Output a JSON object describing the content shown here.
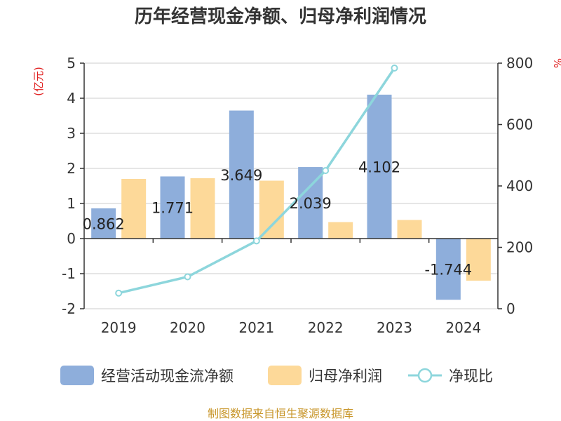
{
  "chart_data": {
    "type": "bar",
    "title": "历年经营现金净额、归母净利润情况",
    "categories": [
      "2019",
      "2020",
      "2021",
      "2022",
      "2023",
      "2024"
    ],
    "series": [
      {
        "name": "经营活动现金流净额",
        "type": "bar",
        "axis": "left",
        "values": [
          0.862,
          1.771,
          3.649,
          2.039,
          4.102,
          -1.744
        ],
        "data_labels": [
          "0.862",
          "1.771",
          "3.649",
          "2.039",
          "4.102",
          "-1.744"
        ],
        "color": "#8eaedb"
      },
      {
        "name": "归母净利润",
        "type": "bar",
        "axis": "left",
        "values": [
          1.7,
          1.72,
          1.65,
          0.47,
          0.53,
          -1.2
        ],
        "color": "#fdd999"
      },
      {
        "name": "净现比",
        "type": "line",
        "axis": "right",
        "values": [
          51,
          104,
          221,
          450,
          784,
          null
        ],
        "color": "#8dd6dc"
      }
    ],
    "y_left": {
      "unit": "(亿元)",
      "ylim": [
        -2,
        5
      ],
      "ticks": [
        "-2",
        "-1",
        "0",
        "1",
        "2",
        "3",
        "4",
        "5"
      ]
    },
    "y_right": {
      "unit": "%",
      "ylim": [
        0,
        800
      ],
      "ticks": [
        "0",
        "200",
        "400",
        "600",
        "800"
      ]
    },
    "grid": true,
    "legend_position": "bottom",
    "unit_color": "#e02020",
    "source_color": "#c8962a"
  },
  "legend": {
    "items": [
      "经营活动现金流净额",
      "归母净利润",
      "净现比"
    ]
  },
  "source_text": "制图数据来自恒生聚源数据库"
}
